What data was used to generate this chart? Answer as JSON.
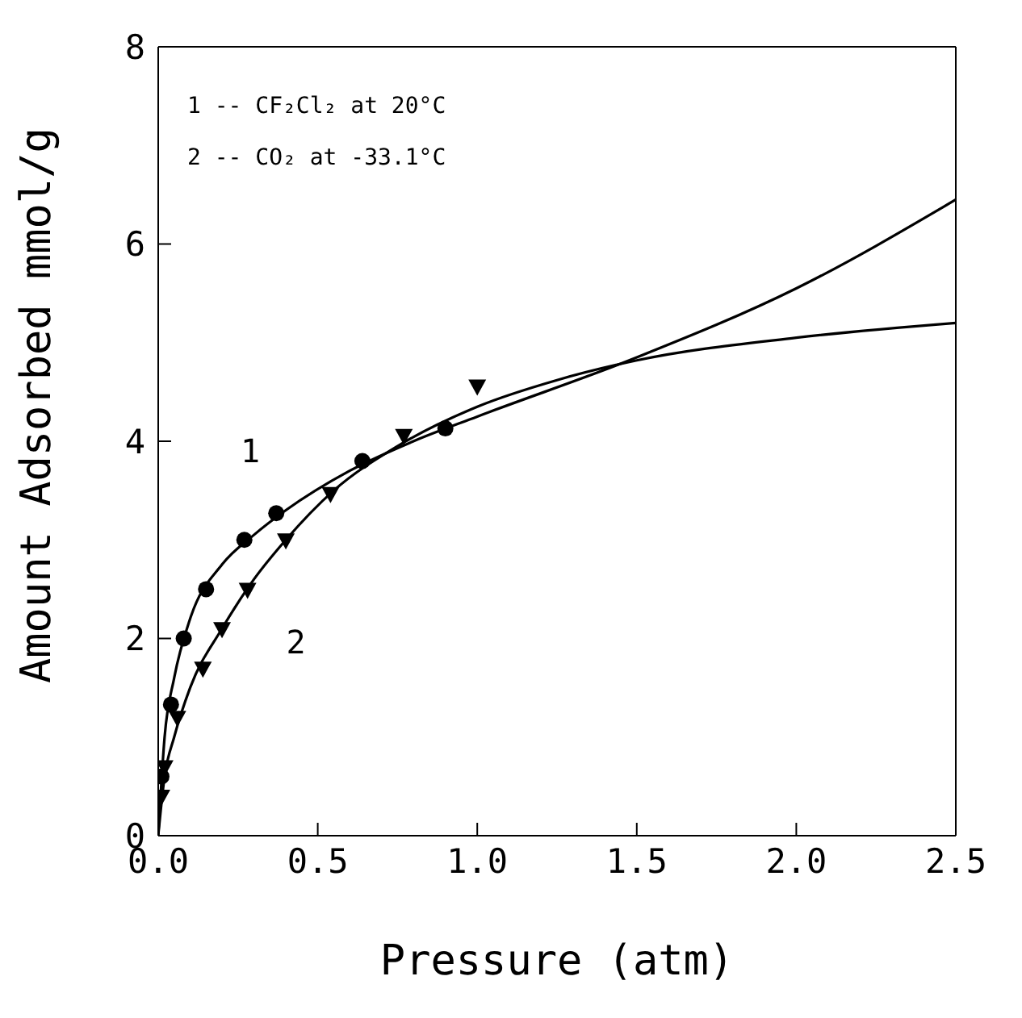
{
  "chart_data": {
    "type": "line",
    "xlabel": "Pressure (atm)",
    "ylabel": "Amount Adsorbed mmol/g",
    "annotations": [
      "1 -- CF₂Cl₂ at 20°C",
      "2 -- CO₂ at -33.1°C"
    ],
    "xlim": [
      0,
      2.5
    ],
    "xticks": [
      {
        "value": 0,
        "label": "0.0"
      },
      0.5,
      {
        "value": 1,
        "label": "1.0"
      },
      1.5,
      {
        "value": 2,
        "label": "2.0"
      },
      2.5
    ],
    "ylim": [
      0,
      8
    ],
    "yticks": [
      0,
      2,
      4,
      6,
      8
    ],
    "series": [
      {
        "name": "1",
        "color": "#000000",
        "marker": "none",
        "x": [
          0,
          0.02,
          0.05,
          0.1,
          0.2,
          0.3,
          0.4,
          0.6,
          0.8,
          1.0,
          1.5,
          2.0,
          2.5
        ],
        "values": [
          0,
          1.0,
          1.6,
          2.2,
          2.75,
          3.05,
          3.3,
          3.7,
          4.0,
          4.25,
          4.85,
          5.55,
          6.45
        ]
      },
      {
        "name": "2",
        "color": "#000000",
        "marker": "none",
        "x": [
          0,
          0.02,
          0.05,
          0.1,
          0.2,
          0.3,
          0.4,
          0.55,
          0.75,
          1.0,
          1.25,
          1.5,
          2.0,
          2.5
        ],
        "values": [
          0,
          0.6,
          1.0,
          1.5,
          2.1,
          2.6,
          3.0,
          3.5,
          3.95,
          4.35,
          4.62,
          4.82,
          5.05,
          5.2
        ]
      },
      {
        "type": "scatter",
        "color": "#000000",
        "marker": "circle",
        "x": [
          0.01,
          0.04,
          0.08,
          0.15,
          0.27,
          0.37,
          0.64,
          0.9
        ],
        "values": [
          0.6,
          1.33,
          2.0,
          2.5,
          3.0,
          3.27,
          3.8,
          4.13
        ]
      },
      {
        "type": "scatter",
        "color": "#000000",
        "marker": "triangle",
        "x": [
          0.01,
          0.02,
          0.06,
          0.14,
          0.2,
          0.28,
          0.4,
          0.54,
          0.77,
          1.0
        ],
        "values": [
          0.4,
          0.7,
          1.2,
          1.7,
          2.1,
          2.5,
          3.0,
          3.47,
          4.06,
          4.56
        ]
      }
    ]
  }
}
